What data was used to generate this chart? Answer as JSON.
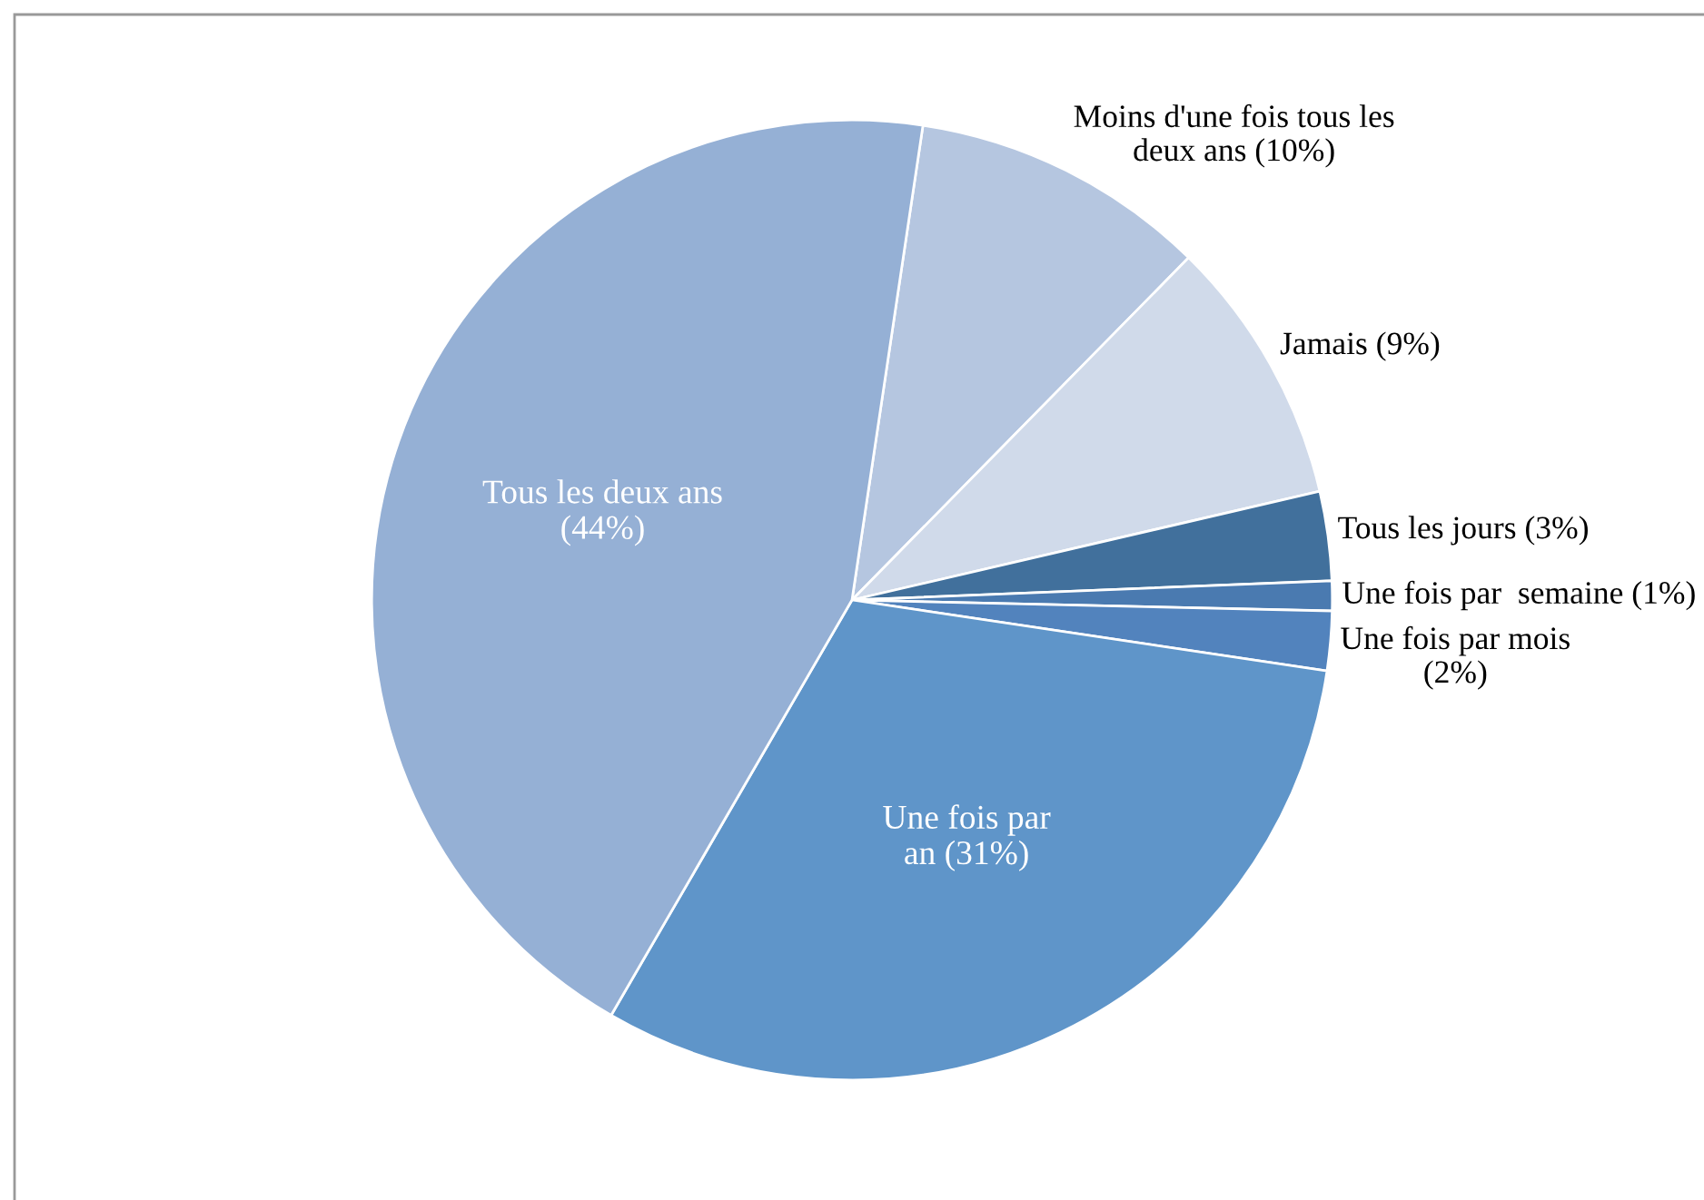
{
  "chart_data": {
    "type": "pie",
    "categories": [
      "Moins d'une fois tous les\ndeux ans (10%)",
      "Jamais (9%)",
      "Tous les jours (3%)",
      "Une fois par  semaine (1%)",
      "Une fois par mois\n(2%)",
      "Une fois par\nan (31%)",
      "Tous les deux ans\n(44%)"
    ],
    "values": [
      10,
      9,
      3,
      1,
      2,
      31,
      44
    ],
    "colors": [
      "#b5c6e0",
      "#d0daea",
      "#41709c",
      "#4a7ab0",
      "#5283bd",
      "#5f95c9",
      "#95b0d5"
    ],
    "legend": false
  }
}
